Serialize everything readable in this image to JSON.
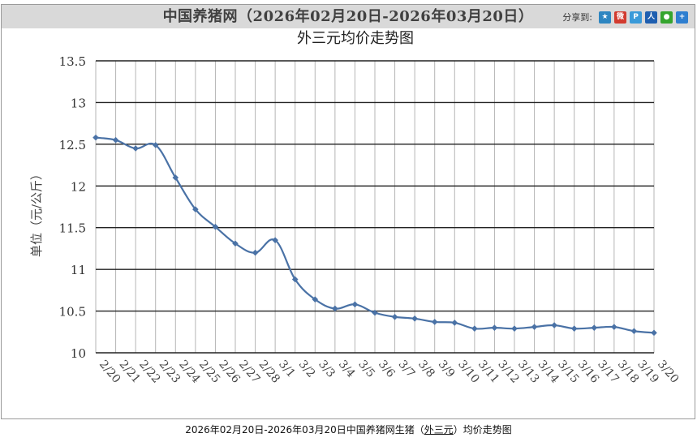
{
  "header": {
    "title": "中国养猪网（2026年02月20日-2026年03月20日）",
    "share_label": "分享到:",
    "share_icons": [
      {
        "name": "qzone-icon",
        "color": "#2e86c1",
        "glyph": "★"
      },
      {
        "name": "weibo-icon",
        "color": "#d23b2f",
        "glyph": "微"
      },
      {
        "name": "tencent-weibo-icon",
        "color": "#3a9ad9",
        "glyph": "P"
      },
      {
        "name": "renren-icon",
        "color": "#1f5fb0",
        "glyph": "人"
      },
      {
        "name": "wechat-icon",
        "color": "#35a52e",
        "glyph": "●"
      },
      {
        "name": "more-share-icon",
        "color": "#2f7fd0",
        "glyph": "+"
      }
    ]
  },
  "chart_data": {
    "type": "line",
    "title": "外三元均价走势图",
    "ylabel": "单位（元/公斤）",
    "xlabel": "",
    "ylim": [
      10,
      13.5
    ],
    "yticks": [
      "13.5",
      "13",
      "12.5",
      "12",
      "11.5",
      "11",
      "10.5",
      "10"
    ],
    "grid": true,
    "line_color": "#4a72a6",
    "categories": [
      "2/20",
      "2/21",
      "2/22",
      "2/23",
      "2/24",
      "2/25",
      "2/26",
      "2/27",
      "2/28",
      "3/1",
      "3/2",
      "3/3",
      "3/4",
      "3/5",
      "3/6",
      "3/7",
      "3/8",
      "3/9",
      "3/10",
      "3/11",
      "3/12",
      "3/13",
      "3/14",
      "3/15",
      "3/16",
      "3/17",
      "3/18",
      "3/19",
      "3/20"
    ],
    "values": [
      12.58,
      12.55,
      12.45,
      12.49,
      12.1,
      11.72,
      11.51,
      11.31,
      11.2,
      11.35,
      10.88,
      10.64,
      10.53,
      10.58,
      10.48,
      10.43,
      10.41,
      10.37,
      10.36,
      10.29,
      10.3,
      10.29,
      10.31,
      10.33,
      10.29,
      10.3,
      10.31,
      10.26,
      10.24
    ]
  },
  "caption": {
    "prefix": "2026年02月20日-2026年03月20日中国养猪网生猪（",
    "link": "外三元",
    "suffix": "）均价走势图"
  }
}
